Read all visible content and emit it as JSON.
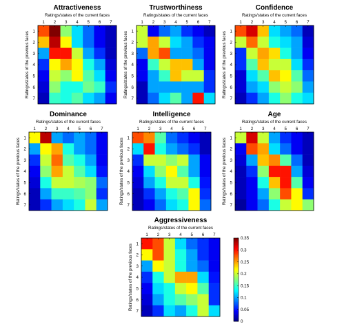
{
  "chart_data": {
    "type": "heatmap",
    "xlabel": "Ratings/states of the current faces",
    "ylabel": "Ratings/states of the previous faces",
    "ticks": [
      "1",
      "2",
      "3",
      "4",
      "5",
      "6",
      "7"
    ],
    "colorbar": {
      "min": 0,
      "max": 0.35,
      "ticks": [
        "0",
        "0.05",
        "0.1",
        "0.15",
        "0.2",
        "0.25",
        "0.3",
        "0.35"
      ],
      "colormap": "jet"
    },
    "panels": [
      {
        "title": "Attractiveness",
        "matrix": [
          [
            0.28,
            0.35,
            0.18,
            0.12,
            0.08,
            0.04,
            0.02
          ],
          [
            0.24,
            0.33,
            0.22,
            0.12,
            0.08,
            0.04,
            0.02
          ],
          [
            0.1,
            0.3,
            0.3,
            0.2,
            0.1,
            0.06,
            0.02
          ],
          [
            0.06,
            0.22,
            0.25,
            0.22,
            0.14,
            0.1,
            0.03
          ],
          [
            0.04,
            0.2,
            0.18,
            0.22,
            0.16,
            0.12,
            0.04
          ],
          [
            0.03,
            0.18,
            0.14,
            0.14,
            0.17,
            0.15,
            0.06
          ],
          [
            0.02,
            0.15,
            0.14,
            0.16,
            0.12,
            0.1,
            0.04
          ]
        ]
      },
      {
        "title": "Trustworthiness",
        "matrix": [
          [
            0.2,
            0.04,
            0.08,
            0.1,
            0.06,
            0.04,
            0.02
          ],
          [
            0.2,
            0.25,
            0.2,
            0.12,
            0.1,
            0.06,
            0.04
          ],
          [
            0.08,
            0.25,
            0.28,
            0.1,
            0.1,
            0.08,
            0.04
          ],
          [
            0.04,
            0.15,
            0.2,
            0.24,
            0.24,
            0.1,
            0.04
          ],
          [
            0.04,
            0.1,
            0.15,
            0.24,
            0.2,
            0.2,
            0.06
          ],
          [
            0.02,
            0.1,
            0.1,
            0.1,
            0.1,
            0.1,
            0.06
          ],
          [
            0.02,
            0.08,
            0.12,
            0.16,
            0.1,
            0.3,
            0.12
          ]
        ]
      },
      {
        "title": "Confidence",
        "matrix": [
          [
            0.28,
            0.32,
            0.24,
            0.12,
            0.1,
            0.08,
            0.02
          ],
          [
            0.2,
            0.27,
            0.2,
            0.14,
            0.12,
            0.1,
            0.03
          ],
          [
            0.06,
            0.2,
            0.25,
            0.23,
            0.14,
            0.1,
            0.04
          ],
          [
            0.06,
            0.16,
            0.24,
            0.2,
            0.2,
            0.12,
            0.06
          ],
          [
            0.03,
            0.12,
            0.16,
            0.24,
            0.22,
            0.16,
            0.08
          ],
          [
            0.03,
            0.1,
            0.12,
            0.18,
            0.2,
            0.18,
            0.1
          ],
          [
            0.02,
            0.06,
            0.1,
            0.14,
            0.18,
            0.14,
            0.12
          ]
        ]
      },
      {
        "title": "Dominance",
        "matrix": [
          [
            0.22,
            0.33,
            0.1,
            0.08,
            0.1,
            0.08,
            0.04
          ],
          [
            0.1,
            0.22,
            0.25,
            0.14,
            0.1,
            0.08,
            0.04
          ],
          [
            0.06,
            0.2,
            0.27,
            0.16,
            0.14,
            0.1,
            0.04
          ],
          [
            0.04,
            0.18,
            0.25,
            0.2,
            0.16,
            0.12,
            0.05
          ],
          [
            0.03,
            0.14,
            0.2,
            0.2,
            0.19,
            0.18,
            0.08
          ],
          [
            0.02,
            0.1,
            0.15,
            0.15,
            0.16,
            0.18,
            0.06
          ],
          [
            0.02,
            0.06,
            0.1,
            0.12,
            0.14,
            0.2,
            0.1
          ]
        ]
      },
      {
        "title": "Intelligence",
        "matrix": [
          [
            0.28,
            0.26,
            0.16,
            0.08,
            0.06,
            0.04,
            0.02
          ],
          [
            0.12,
            0.3,
            0.14,
            0.1,
            0.08,
            0.06,
            0.02
          ],
          [
            0.06,
            0.2,
            0.2,
            0.18,
            0.2,
            0.1,
            0.04
          ],
          [
            0.04,
            0.12,
            0.18,
            0.22,
            0.16,
            0.1,
            0.04
          ],
          [
            0.03,
            0.1,
            0.14,
            0.2,
            0.2,
            0.14,
            0.05
          ],
          [
            0.02,
            0.06,
            0.1,
            0.14,
            0.16,
            0.22,
            0.06
          ],
          [
            0.02,
            0.04,
            0.08,
            0.12,
            0.14,
            0.22,
            0.08
          ]
        ]
      },
      {
        "title": "Age",
        "matrix": [
          [
            0.2,
            0.32,
            0.2,
            0.1,
            0.06,
            0.04,
            0.02
          ],
          [
            0.04,
            0.28,
            0.25,
            0.12,
            0.08,
            0.04,
            0.02
          ],
          [
            0.03,
            0.1,
            0.24,
            0.26,
            0.16,
            0.08,
            0.02
          ],
          [
            0.02,
            0.06,
            0.18,
            0.3,
            0.3,
            0.1,
            0.03
          ],
          [
            0.02,
            0.04,
            0.14,
            0.24,
            0.3,
            0.16,
            0.04
          ],
          [
            0.02,
            0.04,
            0.1,
            0.18,
            0.28,
            0.22,
            0.06
          ],
          [
            0.01,
            0.04,
            0.08,
            0.14,
            0.2,
            0.22,
            0.18
          ]
        ]
      },
      {
        "title": "Aggressiveness",
        "matrix": [
          [
            0.3,
            0.28,
            0.2,
            0.12,
            0.08,
            0.06,
            0.04
          ],
          [
            0.22,
            0.28,
            0.2,
            0.14,
            0.1,
            0.06,
            0.04
          ],
          [
            0.1,
            0.22,
            0.2,
            0.14,
            0.1,
            0.08,
            0.04
          ],
          [
            0.06,
            0.14,
            0.2,
            0.25,
            0.25,
            0.12,
            0.05
          ],
          [
            0.04,
            0.12,
            0.14,
            0.2,
            0.22,
            0.16,
            0.06
          ],
          [
            0.03,
            0.1,
            0.14,
            0.16,
            0.18,
            0.2,
            0.06
          ],
          [
            0.02,
            0.06,
            0.12,
            0.1,
            0.14,
            0.2,
            0.12
          ]
        ]
      }
    ]
  }
}
